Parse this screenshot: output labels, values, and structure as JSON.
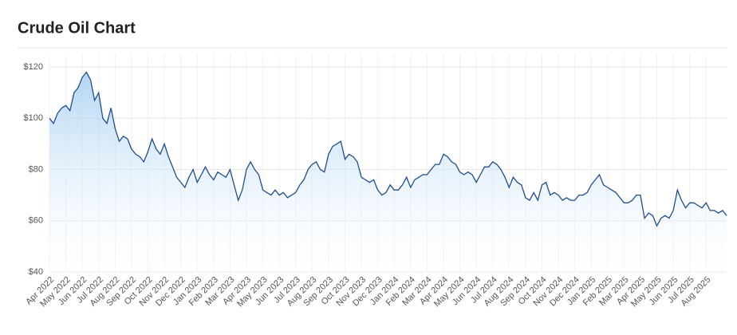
{
  "chart_data": {
    "type": "line",
    "title": "Crude Oil Chart",
    "categories": [
      "Apr 2022",
      null,
      null,
      null,
      "May 2022",
      null,
      null,
      null,
      "Jun 2022",
      null,
      null,
      null,
      "Jul 2022",
      null,
      null,
      null,
      "Aug 2022",
      null,
      null,
      null,
      "Sep 2022",
      null,
      null,
      null,
      "Oct 2022",
      null,
      null,
      null,
      "Nov 2022",
      null,
      null,
      null,
      "Dec 2022",
      null,
      null,
      null,
      "Jan 2023",
      null,
      null,
      null,
      "Feb 2023",
      null,
      null,
      null,
      "Mar 2023",
      null,
      null,
      null,
      "Apr 2023",
      null,
      null,
      null,
      "May 2023",
      null,
      null,
      null,
      "Jun 2023",
      null,
      null,
      null,
      "Jul 2023",
      null,
      null,
      null,
      "Aug 2023",
      null,
      null,
      null,
      "Sep 2023",
      null,
      null,
      null,
      "Oct 2023",
      null,
      null,
      null,
      "Nov 2023",
      null,
      null,
      null,
      "Dec 2023",
      null,
      null,
      null,
      "Jan 2024",
      null,
      null,
      null,
      "Feb 2024",
      null,
      null,
      null,
      "Mar 2024",
      null,
      null,
      null,
      "Apr 2024",
      null,
      null,
      null,
      "May 2024",
      null,
      null,
      null,
      "Jun 2024",
      null,
      null,
      null,
      "Jul 2024",
      null,
      null,
      null,
      "Aug 2024",
      null,
      null,
      null,
      "Sep 2024",
      null,
      null,
      null,
      "Oct 2024",
      null,
      null,
      null,
      "Nov 2024",
      null,
      null,
      null,
      "Dec 2024",
      null,
      null,
      null,
      "Jan 2025",
      null,
      null,
      null,
      "Feb 2025",
      null,
      null,
      null,
      "Mar 2025",
      null,
      null,
      null,
      "Apr 2025",
      null,
      null,
      null,
      "May 2025",
      null,
      null,
      null,
      "Jun 2025",
      null,
      null,
      null,
      "Jul 2025",
      null,
      null,
      null,
      "Aug 2025",
      null,
      null,
      null,
      null,
      null
    ],
    "series": [
      {
        "name": "Crude Oil",
        "color": "#1f4e8c",
        "values": [
          100,
          98,
          102,
          104,
          105,
          103,
          110,
          112,
          116,
          118,
          115,
          107,
          110,
          100,
          98,
          104,
          96,
          91,
          93,
          92,
          88,
          86,
          85,
          83,
          87,
          92,
          88,
          86,
          90,
          85,
          81,
          77,
          75,
          73,
          77,
          80,
          75,
          78,
          81,
          78,
          76,
          79,
          78,
          77,
          80,
          74,
          68,
          72,
          80,
          83,
          80,
          78,
          72,
          71,
          70,
          72,
          70,
          71,
          69,
          70,
          71,
          74,
          76,
          80,
          82,
          83,
          80,
          79,
          86,
          89,
          90,
          91,
          84,
          86,
          85,
          83,
          77,
          76,
          75,
          76,
          72,
          70,
          71,
          74,
          72,
          72,
          74,
          77,
          73,
          76,
          77,
          78,
          78,
          80,
          82,
          82,
          86,
          85,
          83,
          82,
          79,
          78,
          79,
          78,
          75,
          78,
          81,
          81,
          83,
          82,
          80,
          77,
          73,
          77,
          75,
          74,
          69,
          68,
          71,
          68,
          74,
          75,
          70,
          71,
          70,
          68,
          69,
          68,
          68,
          70,
          70,
          71,
          74,
          76,
          78,
          74,
          73,
          72,
          71,
          69,
          67,
          67,
          68,
          70,
          70,
          61,
          63,
          62,
          58,
          61,
          62,
          61,
          64,
          72,
          68,
          65,
          67,
          67,
          66,
          65,
          67,
          64,
          64,
          63,
          64,
          62
        ]
      }
    ],
    "ylim": [
      40,
      125
    ],
    "yticks": [
      {
        "value": 40,
        "label": "$40"
      },
      {
        "value": 60,
        "label": "$60"
      },
      {
        "value": 80,
        "label": "$80"
      },
      {
        "value": 100,
        "label": "$100"
      },
      {
        "value": 120,
        "label": "$120"
      }
    ],
    "grid": true
  }
}
